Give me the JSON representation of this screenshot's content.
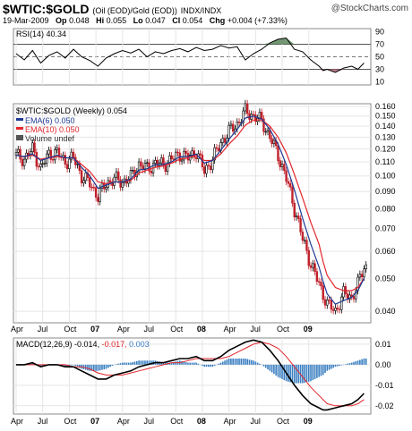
{
  "header": {
    "symbol": "$WTIC:$GOLD",
    "description": "(Oil (EOD)/Gold (EOD))",
    "exchange": "INDX/INDX",
    "watermark": "@StockCharts.com",
    "date": "19-Mar-2009",
    "op_label": "Op",
    "op": "0.048",
    "hi_label": "Hi",
    "hi": "0.055",
    "lo_label": "Lo",
    "lo": "0.047",
    "cl_label": "Cl",
    "cl": "0.054",
    "chg_label": "Chg",
    "chg": "+0.004 (+7.33%)"
  },
  "colors": {
    "price": "#000000",
    "ema6": "#1f3a93",
    "ema10": "#e3262b",
    "macd": "#000000",
    "signal": "#e3262b",
    "histogram": "#3a7fc1",
    "rsi_fill_high": "#4f7d4f",
    "rsi_fill_low": "#b35a6e"
  },
  "chart_data": [
    {
      "type": "line",
      "panel": "rsi",
      "title": "RSI(14) 40.34",
      "y_ticks": [
        10,
        30,
        50,
        70,
        90
      ],
      "levels": [
        30,
        70
      ],
      "midline": 50,
      "ylim": [
        5,
        95
      ],
      "x": [
        0,
        4,
        8,
        12,
        16,
        20,
        24,
        28,
        32,
        36,
        40,
        44,
        48,
        52,
        56,
        60,
        64,
        68,
        72,
        76,
        80,
        84,
        88,
        92,
        96,
        100,
        104,
        108,
        112,
        116,
        120,
        124,
        128,
        132,
        136,
        140,
        144,
        148,
        150,
        152,
        156,
        160,
        164,
        167,
        170
      ],
      "values": [
        55,
        45,
        60,
        40,
        52,
        58,
        48,
        62,
        50,
        44,
        35,
        48,
        55,
        60,
        56,
        62,
        50,
        58,
        55,
        60,
        63,
        58,
        65,
        60,
        62,
        68,
        64,
        66,
        45,
        55,
        62,
        72,
        78,
        80,
        62,
        58,
        45,
        35,
        28,
        30,
        25,
        32,
        35,
        30,
        40
      ]
    },
    {
      "type": "candlestick",
      "panel": "price",
      "title": "$WTIC:$GOLD (Weekly) 0.054",
      "legend": [
        {
          "name": "EMA(6) 0.050",
          "color": "#1f3a93"
        },
        {
          "name": "EMA(10) 0.050",
          "color": "#e3262b"
        },
        {
          "name": "Volume undef",
          "color": "#000000"
        }
      ],
      "y_ticks": [
        0.04,
        0.05,
        0.06,
        0.07,
        0.08,
        0.09,
        0.1,
        0.11,
        0.12,
        0.13,
        0.14,
        0.15,
        0.16
      ],
      "y_scale": "log",
      "ylim": [
        0.037,
        0.163
      ],
      "x_ticks": [
        "Apr",
        "Jul",
        "Oct",
        "07",
        "Apr",
        "Jul",
        "Oct",
        "08",
        "Apr",
        "Jul",
        "Oct",
        "09"
      ],
      "x_tick_weeks": [
        0,
        13,
        26,
        39,
        52,
        65,
        78,
        91,
        104,
        117,
        130,
        143
      ],
      "x": [
        0,
        4,
        8,
        12,
        16,
        20,
        24,
        28,
        32,
        36,
        40,
        44,
        48,
        52,
        56,
        60,
        64,
        68,
        72,
        76,
        80,
        84,
        88,
        92,
        96,
        100,
        104,
        108,
        112,
        116,
        120,
        124,
        128,
        132,
        136,
        140,
        144,
        148,
        150,
        152,
        156,
        160,
        164,
        167,
        170
      ],
      "values": [
        0.115,
        0.112,
        0.12,
        0.105,
        0.116,
        0.117,
        0.11,
        0.113,
        0.1,
        0.095,
        0.087,
        0.095,
        0.098,
        0.096,
        0.099,
        0.108,
        0.105,
        0.109,
        0.108,
        0.112,
        0.116,
        0.113,
        0.118,
        0.103,
        0.112,
        0.125,
        0.135,
        0.142,
        0.155,
        0.15,
        0.145,
        0.13,
        0.115,
        0.098,
        0.08,
        0.065,
        0.055,
        0.048,
        0.045,
        0.042,
        0.04,
        0.045,
        0.044,
        0.048,
        0.054
      ],
      "ema6": [
        0.115,
        0.114,
        0.116,
        0.111,
        0.113,
        0.115,
        0.113,
        0.113,
        0.106,
        0.1,
        0.092,
        0.094,
        0.096,
        0.096,
        0.098,
        0.104,
        0.105,
        0.108,
        0.108,
        0.11,
        0.114,
        0.114,
        0.116,
        0.109,
        0.111,
        0.119,
        0.128,
        0.137,
        0.148,
        0.15,
        0.147,
        0.137,
        0.124,
        0.108,
        0.091,
        0.075,
        0.063,
        0.054,
        0.049,
        0.045,
        0.042,
        0.043,
        0.044,
        0.046,
        0.05
      ],
      "ema10": [
        0.115,
        0.114,
        0.115,
        0.112,
        0.113,
        0.114,
        0.113,
        0.113,
        0.108,
        0.103,
        0.096,
        0.095,
        0.096,
        0.096,
        0.097,
        0.102,
        0.104,
        0.106,
        0.107,
        0.109,
        0.112,
        0.113,
        0.115,
        0.111,
        0.111,
        0.116,
        0.124,
        0.131,
        0.141,
        0.146,
        0.146,
        0.14,
        0.13,
        0.117,
        0.101,
        0.086,
        0.073,
        0.063,
        0.056,
        0.051,
        0.047,
        0.046,
        0.046,
        0.047,
        0.05
      ]
    },
    {
      "type": "line",
      "panel": "macd",
      "title": "MACD(12,26,9)",
      "title_values": [
        {
          "text": "-0.014,",
          "color": "#000000"
        },
        {
          "text": "-0.017,",
          "color": "#e3262b"
        },
        {
          "text": "0.003",
          "color": "#3a7fc1"
        }
      ],
      "y_ticks": [
        0.01,
        0.0,
        -0.01,
        -0.02
      ],
      "y_tick_labels": [
        "0.01",
        "0.00",
        "-0.01",
        "-0.02"
      ],
      "ylim": [
        -0.024,
        0.013
      ],
      "x": [
        0,
        4,
        8,
        12,
        16,
        20,
        24,
        28,
        32,
        36,
        40,
        44,
        48,
        52,
        56,
        60,
        64,
        68,
        72,
        76,
        80,
        84,
        88,
        92,
        96,
        100,
        104,
        108,
        112,
        116,
        120,
        124,
        128,
        132,
        136,
        140,
        144,
        148,
        150,
        152,
        156,
        160,
        164,
        167,
        170
      ],
      "series": [
        {
          "name": "MACD",
          "values": [
            0.0,
            0.0,
            0.001,
            -0.001,
            0.0,
            0.0,
            -0.001,
            -0.001,
            -0.003,
            -0.005,
            -0.007,
            -0.007,
            -0.005,
            -0.004,
            -0.003,
            -0.001,
            0.0,
            0.001,
            0.001,
            0.002,
            0.003,
            0.003,
            0.004,
            0.002,
            0.002,
            0.004,
            0.007,
            0.009,
            0.011,
            0.012,
            0.011,
            0.007,
            0.002,
            -0.004,
            -0.01,
            -0.015,
            -0.019,
            -0.021,
            -0.022,
            -0.022,
            -0.021,
            -0.02,
            -0.019,
            -0.017,
            -0.014
          ]
        },
        {
          "name": "Signal",
          "values": [
            0.0,
            0.0,
            0.0,
            0.0,
            0.0,
            0.0,
            0.0,
            -0.001,
            -0.001,
            -0.002,
            -0.004,
            -0.005,
            -0.005,
            -0.005,
            -0.004,
            -0.003,
            -0.002,
            -0.001,
            0.0,
            0.001,
            0.001,
            0.002,
            0.003,
            0.003,
            0.003,
            0.003,
            0.004,
            0.006,
            0.008,
            0.01,
            0.011,
            0.01,
            0.008,
            0.004,
            -0.001,
            -0.006,
            -0.011,
            -0.015,
            -0.017,
            -0.019,
            -0.02,
            -0.02,
            -0.02,
            -0.019,
            -0.017
          ]
        },
        {
          "name": "Histogram",
          "values": [
            0.0,
            0.0,
            0.001,
            -0.001,
            0.0,
            0.0,
            -0.001,
            0.0,
            -0.002,
            -0.003,
            -0.003,
            -0.002,
            0.0,
            0.001,
            0.001,
            0.002,
            0.002,
            0.002,
            0.001,
            0.001,
            0.002,
            0.001,
            0.001,
            -0.001,
            -0.001,
            0.001,
            0.003,
            0.003,
            0.003,
            0.002,
            0.0,
            -0.003,
            -0.006,
            -0.008,
            -0.009,
            -0.009,
            -0.008,
            -0.006,
            -0.005,
            -0.003,
            -0.001,
            0.0,
            0.001,
            0.002,
            0.003
          ]
        }
      ]
    }
  ]
}
